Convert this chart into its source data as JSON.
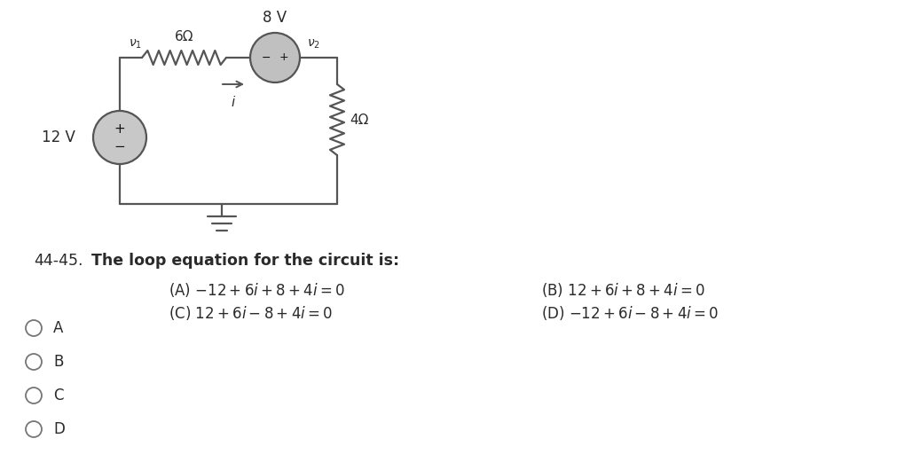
{
  "bg_color": "#ffffff",
  "text_color": "#2a2a2a",
  "wire_color": "#555555",
  "circuit": {
    "v12_label": "12 V",
    "v8_label": "8 V",
    "r6_label": "6Ω",
    "r4_label": "4Ω",
    "v1_label": "v_1",
    "v2_label": "v_2",
    "i_label": "i"
  },
  "question_num": "44-45.",
  "question_text": "  The loop equation for the circuit is:",
  "choice_A": "(A) –12 + 6",
  "choice_B": "(B) 12 + 6",
  "choice_C": "(C) 12 + 6",
  "choice_D": "(D) –12 + 6",
  "options": [
    "A",
    "B",
    "C",
    "D"
  ]
}
